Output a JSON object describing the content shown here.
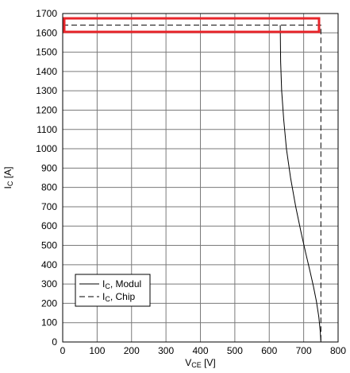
{
  "chart_data": {
    "type": "line",
    "xlabel": "V_CE [V]",
    "xlabel_parts": {
      "main": "V",
      "sub": "CE",
      "unit": " [V]"
    },
    "ylabel": "I_C [A]",
    "ylabel_parts": {
      "main": "I",
      "sub": "C",
      "unit": " [A]"
    },
    "xlim": [
      0,
      800
    ],
    "ylim": [
      0,
      1700
    ],
    "xticks": [
      0,
      100,
      200,
      300,
      400,
      500,
      600,
      700,
      800
    ],
    "yticks": [
      0,
      100,
      200,
      300,
      400,
      500,
      600,
      700,
      800,
      900,
      1000,
      1100,
      1200,
      1300,
      1400,
      1500,
      1600,
      1700
    ],
    "grid": true,
    "legend_position": "bottom-left",
    "series": [
      {
        "name": "I_C, Modul",
        "name_parts": {
          "main": "I",
          "sub": "C",
          "rest": ", Modul"
        },
        "style": "solid",
        "x": [
          632,
          633,
          636,
          642,
          650,
          662,
          677,
          692,
          706,
          718,
          728,
          737,
          744,
          748,
          750
        ],
        "y": [
          1640,
          1450,
          1300,
          1150,
          1000,
          850,
          700,
          570,
          460,
          370,
          290,
          210,
          130,
          60,
          0
        ]
      },
      {
        "name": "I_C, Chip",
        "name_parts": {
          "main": "I",
          "sub": "C",
          "rest": ", Chip"
        },
        "style": "dashed",
        "x": [
          0,
          750,
          750
        ],
        "y": [
          1640,
          1640,
          0
        ]
      }
    ],
    "annotations": [
      {
        "type": "highlight-box",
        "color": "#e8262b",
        "x_range": [
          0,
          740
        ],
        "y_range": [
          1605,
          1675
        ]
      }
    ]
  }
}
